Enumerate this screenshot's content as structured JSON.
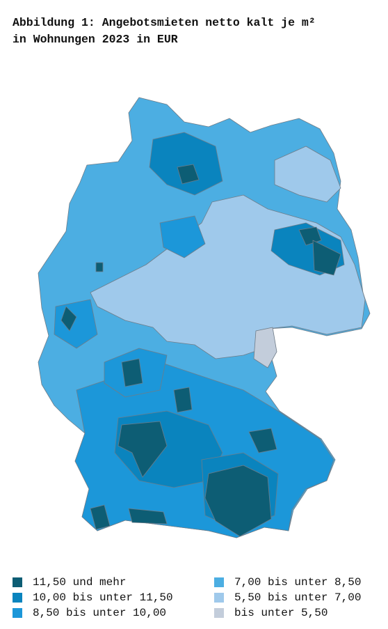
{
  "title": [
    "Abbildung 1: Angebotsmieten netto kalt je m²",
    "in Wohnungen 2023 in EUR"
  ],
  "legend": [
    {
      "label": "11,50 und mehr",
      "color": "#0d5d74"
    },
    {
      "label": "10,00 bis unter 11,50",
      "color": "#0a84be"
    },
    {
      "label": "8,50 bis unter 10,00",
      "color": "#1c97d9"
    },
    {
      "label": "7,00 bis unter 8,50",
      "color": "#4caee2"
    },
    {
      "label": "5,50 bis unter 7,00",
      "color": "#9fc9eb"
    },
    {
      "label": "bis unter 5,50",
      "color": "#c3cddb"
    }
  ]
}
